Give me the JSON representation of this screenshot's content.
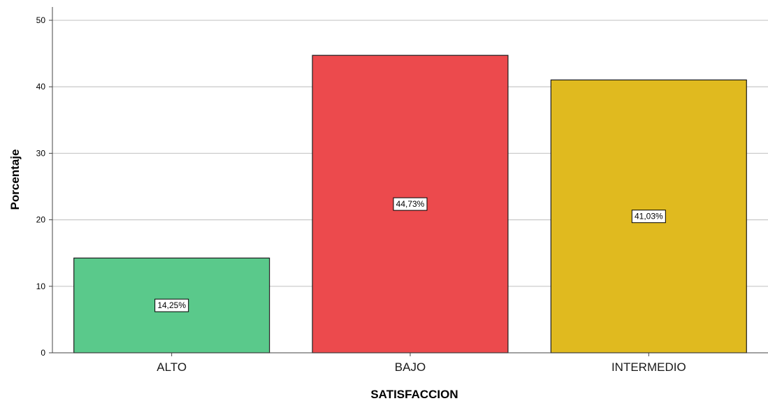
{
  "chart_data": {
    "type": "bar",
    "categories": [
      "ALTO",
      "BAJO",
      "INTERMEDIO"
    ],
    "values": [
      14.25,
      44.73,
      41.03
    ],
    "data_labels": [
      "14,25%",
      "44,73%",
      "41,03%"
    ],
    "colors": [
      "#5ac98b",
      "#ec4a4d",
      "#e0ba1f"
    ],
    "xlabel": "SATISFACCION",
    "ylabel": "Porcentaje",
    "ylim": [
      0,
      52
    ],
    "yticks": [
      0,
      10,
      20,
      30,
      40,
      50
    ],
    "ytick_labels": [
      "0",
      "10",
      "20",
      "30",
      "40",
      "50"
    ],
    "grid": true
  }
}
